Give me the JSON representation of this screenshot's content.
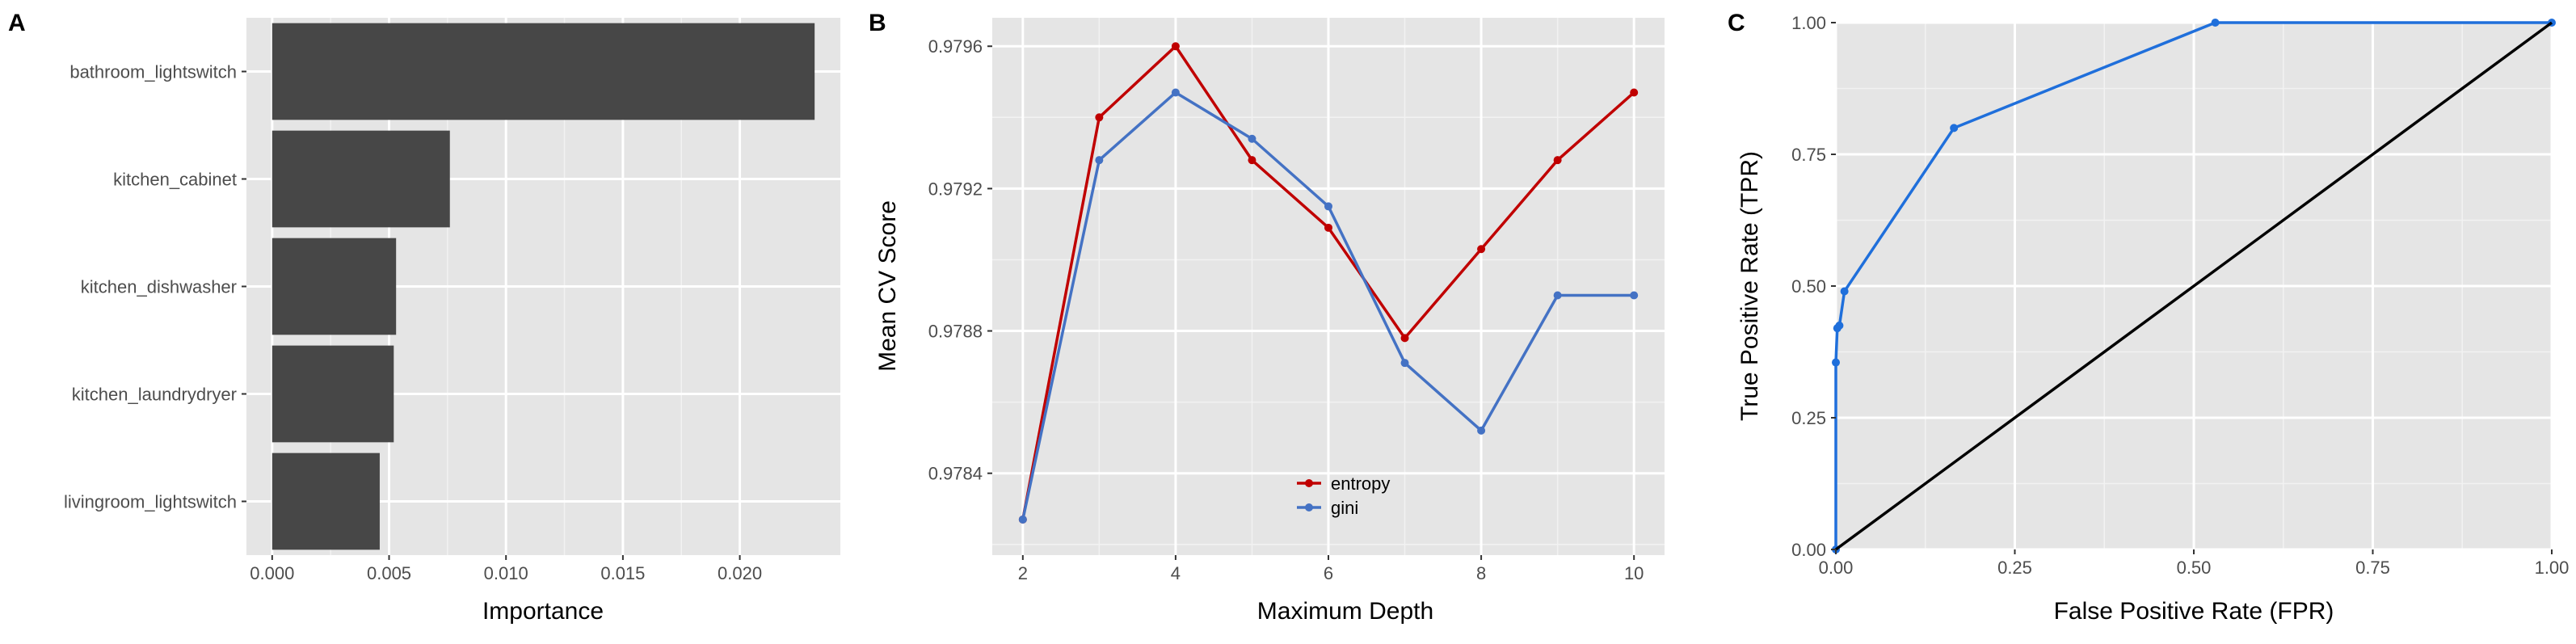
{
  "chart_data": [
    {
      "panel_label": "A",
      "type": "bar",
      "orientation": "horizontal",
      "categories": [
        "bathroom_lightswitch",
        "kitchen_cabinet",
        "kitchen_dishwasher",
        "kitchen_laundrydryer",
        "livingroom_lightswitch"
      ],
      "values": [
        0.0232,
        0.0076,
        0.0053,
        0.0052,
        0.0046
      ],
      "xlabel": "Importance",
      "ylabel": "",
      "xlim": [
        -0.0011,
        0.0243
      ],
      "xticks": [
        0.0,
        0.005,
        0.01,
        0.015,
        0.02
      ],
      "xtick_labels": [
        "0.000",
        "0.005",
        "0.010",
        "0.015",
        "0.020"
      ],
      "bar_color": "#474747",
      "grid": true
    },
    {
      "panel_label": "B",
      "type": "line",
      "x": [
        2,
        3,
        4,
        5,
        6,
        7,
        8,
        9,
        10
      ],
      "series": [
        {
          "name": "entropy",
          "color": "#c00000",
          "values": [
            0.97827,
            0.9794,
            0.9796,
            0.97928,
            0.97909,
            0.97878,
            0.97903,
            0.97928,
            0.97947
          ]
        },
        {
          "name": "gini",
          "color": "#4472c4",
          "values": [
            0.97827,
            0.97928,
            0.97947,
            0.97934,
            0.97915,
            0.97871,
            0.97852,
            0.9789,
            0.9789
          ]
        }
      ],
      "xlabel": "Maximum Depth",
      "ylabel": "Mean CV Score",
      "xlim": [
        1.6,
        10.4
      ],
      "ylim": [
        0.97817,
        0.97968
      ],
      "xticks": [
        2,
        4,
        6,
        8,
        10
      ],
      "xtick_labels": [
        "2",
        "4",
        "6",
        "8",
        "10"
      ],
      "yticks": [
        0.9784,
        0.9788,
        0.9792,
        0.9796
      ],
      "ytick_labels": [
        "0.9784",
        "0.9788",
        "0.9792",
        "0.9796"
      ],
      "legend_position": "bottom-center",
      "grid": true
    },
    {
      "panel_label": "C",
      "type": "line",
      "series": [
        {
          "name": "ROC",
          "color": "#1f6fdb",
          "x": [
            0.0,
            0.0,
            0.002,
            0.005,
            0.012,
            0.165,
            0.53,
            1.0
          ],
          "y": [
            0.0,
            0.355,
            0.42,
            0.425,
            0.49,
            0.8,
            1.0,
            1.0
          ],
          "markers": true
        },
        {
          "name": "diagonal",
          "color": "#000000",
          "x": [
            0.0,
            1.0
          ],
          "y": [
            0.0,
            1.0
          ],
          "markers": false
        }
      ],
      "xlabel": "False Positive Rate (FPR)",
      "ylabel": "True Positive Rate (TPR)",
      "xlim": [
        0.0,
        1.0
      ],
      "ylim": [
        0.0,
        1.0
      ],
      "xticks": [
        0.0,
        0.25,
        0.5,
        0.75,
        1.0
      ],
      "xtick_labels": [
        "0.00",
        "0.25",
        "0.50",
        "0.75",
        "1.00"
      ],
      "yticks": [
        0.0,
        0.25,
        0.5,
        0.75,
        1.0
      ],
      "ytick_labels": [
        "0.00",
        "0.25",
        "0.50",
        "0.75",
        "1.00"
      ],
      "grid": true
    }
  ]
}
